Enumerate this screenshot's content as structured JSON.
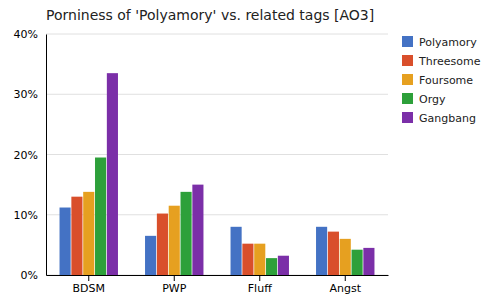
{
  "chart_data": {
    "type": "bar",
    "title": "Porniness of 'Polyamory' vs. related tags [AO3]",
    "categories": [
      "BDSM",
      "PWP",
      "Fluff",
      "Angst"
    ],
    "series": [
      {
        "name": "Polyamory",
        "color": "#4472C4",
        "values": [
          11.2,
          6.5,
          8.0,
          8.0
        ]
      },
      {
        "name": "Threesome",
        "color": "#D94F2B",
        "values": [
          13.0,
          10.2,
          5.2,
          7.2
        ]
      },
      {
        "name": "Foursome",
        "color": "#E6A020",
        "values": [
          13.8,
          11.5,
          5.2,
          6.0
        ]
      },
      {
        "name": "Orgy",
        "color": "#2DA03A",
        "values": [
          19.5,
          13.8,
          2.8,
          4.2
        ]
      },
      {
        "name": "Gangbang",
        "color": "#7B2FA8",
        "values": [
          33.5,
          15.0,
          3.2,
          4.5
        ]
      }
    ],
    "ylim": [
      0,
      40
    ],
    "yticks": [
      {
        "value": 0,
        "label": "0%"
      },
      {
        "value": 10,
        "label": "10%"
      },
      {
        "value": 20,
        "label": "20%"
      },
      {
        "value": 30,
        "label": "30%"
      },
      {
        "value": 40,
        "label": "40%"
      }
    ],
    "grid": true,
    "legend": "right"
  }
}
